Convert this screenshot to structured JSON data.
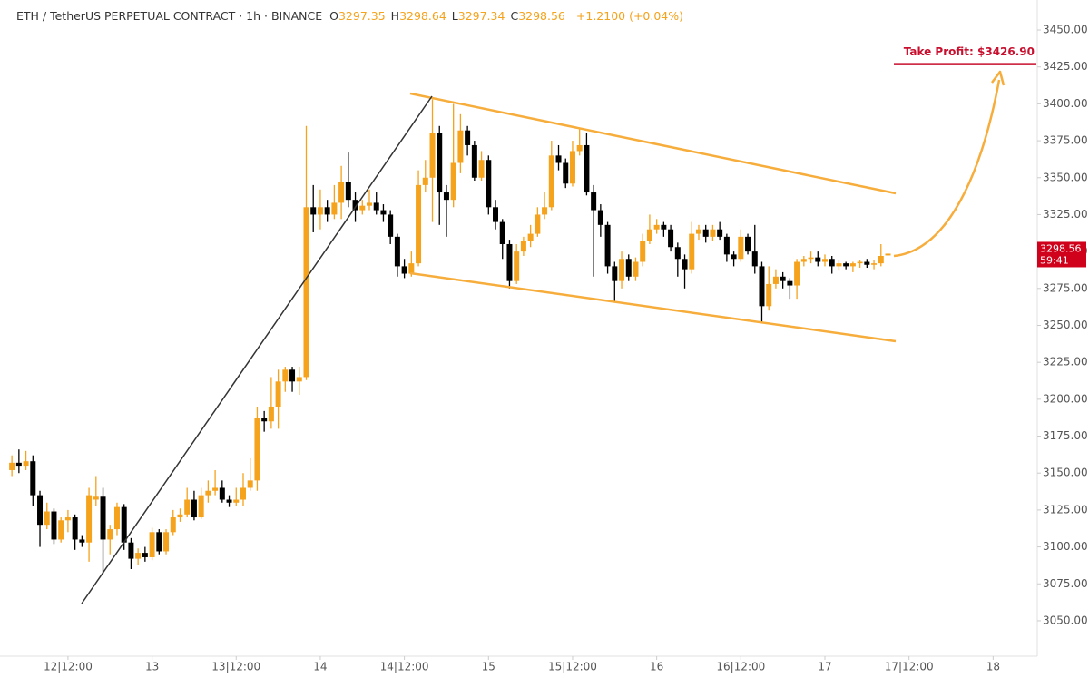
{
  "chart_data": {
    "type": "candlestick",
    "title": "ETH / TetherUS PERPETUAL CONTRACT · 1h · BINANCE",
    "ohlc_labels": [
      "O",
      "H",
      "L",
      "C"
    ],
    "change": "+1.2100 (+0.04%)",
    "countdown": "59:41",
    "take_profit": {
      "label": "Take Profit: $3426.90",
      "value": 3426.9
    },
    "up_color": "#f5a21c",
    "down_color": "#000000",
    "x": [
      4,
      5,
      6,
      7,
      8,
      9,
      10,
      11,
      12,
      13,
      14,
      15,
      16,
      17,
      18,
      19,
      20,
      21,
      22,
      23,
      24,
      25,
      26,
      27,
      28,
      29,
      30,
      31,
      32,
      33,
      34,
      35,
      36,
      37,
      38,
      39,
      40,
      41,
      42,
      43,
      44,
      45,
      46,
      47,
      48,
      49,
      50,
      51,
      52,
      53,
      54,
      55,
      56,
      57,
      58,
      59,
      60,
      61,
      62,
      63,
      64,
      65,
      66,
      67,
      68,
      69,
      70,
      71,
      72,
      73,
      74,
      75,
      76,
      77,
      78,
      79,
      80,
      81,
      82,
      83,
      84,
      85,
      86,
      87,
      88,
      89,
      90,
      91,
      92,
      93,
      94,
      95,
      96,
      97,
      98,
      99,
      100,
      101,
      102,
      103,
      104,
      105,
      106,
      107,
      108,
      109,
      110,
      111,
      112,
      113,
      114,
      115,
      116,
      117,
      118,
      119,
      120,
      121,
      122,
      123,
      124,
      125,
      126,
      127,
      128,
      129
    ],
    "open": [
      3152,
      3157,
      3155,
      3158,
      3135,
      3115,
      3124,
      3105,
      3118,
      3120,
      3105,
      3103,
      3132,
      3134,
      3105,
      3112,
      3127,
      3103,
      3092,
      3096,
      3093,
      3110,
      3097,
      3110,
      3120,
      3122,
      3132,
      3120,
      3135,
      3138,
      3140,
      3132,
      3130,
      3132,
      3140,
      3145,
      3187,
      3185,
      3195,
      3212,
      3220,
      3212,
      3215,
      3330,
      3325,
      3330,
      3325,
      3333,
      3347,
      3335,
      3328,
      3331,
      3333,
      3328,
      3325,
      3310,
      3290,
      3285,
      3292,
      3345,
      3350,
      3380,
      3340,
      3335,
      3360,
      3382,
      3372,
      3350,
      3362,
      3330,
      3320,
      3305,
      3280,
      3300,
      3307,
      3312,
      3325,
      3330,
      3365,
      3360,
      3346,
      3368,
      3372,
      3340,
      3328,
      3318,
      3290,
      3280,
      3295,
      3283,
      3293,
      3307,
      3315,
      3318,
      3315,
      3303,
      3295,
      3288,
      3312,
      3315,
      3310,
      3315,
      3310,
      3298,
      3295,
      3310,
      3300,
      3290,
      3263,
      3278,
      3283,
      3280,
      3277,
      3293,
      3295,
      3296,
      3293,
      3295,
      3290,
      3292,
      3290,
      3292,
      3293,
      3291,
      3292,
      3297.35
    ],
    "high": [
      3162,
      3166,
      3165,
      3162,
      3138,
      3130,
      3126,
      3120,
      3125,
      3122,
      3108,
      3140,
      3148,
      3140,
      3115,
      3130,
      3129,
      3106,
      3099,
      3100,
      3113,
      3112,
      3112,
      3125,
      3126,
      3140,
      3138,
      3140,
      3145,
      3152,
      3145,
      3135,
      3140,
      3150,
      3160,
      3195,
      3192,
      3215,
      3220,
      3222,
      3222,
      3222,
      3385,
      3345,
      3342,
      3335,
      3345,
      3358,
      3367,
      3340,
      3335,
      3342,
      3340,
      3332,
      3328,
      3312,
      3295,
      3300,
      3355,
      3362,
      3403,
      3385,
      3345,
      3400,
      3393,
      3385,
      3375,
      3368,
      3365,
      3335,
      3322,
      3308,
      3305,
      3310,
      3318,
      3330,
      3340,
      3375,
      3372,
      3363,
      3375,
      3383,
      3380,
      3345,
      3332,
      3320,
      3293,
      3300,
      3298,
      3296,
      3312,
      3325,
      3322,
      3320,
      3318,
      3306,
      3298,
      3320,
      3318,
      3318,
      3318,
      3320,
      3312,
      3300,
      3315,
      3312,
      3318,
      3293,
      3290,
      3288,
      3286,
      3282,
      3295,
      3297,
      3300,
      3300,
      3298,
      3297,
      3294,
      3293,
      3293,
      3294,
      3295,
      3294,
      3305,
      3298.64
    ],
    "low": [
      3148,
      3150,
      3152,
      3128,
      3100,
      3112,
      3102,
      3103,
      3110,
      3098,
      3100,
      3090,
      3128,
      3082,
      3095,
      3108,
      3098,
      3085,
      3088,
      3090,
      3091,
      3095,
      3095,
      3108,
      3117,
      3120,
      3118,
      3119,
      3130,
      3135,
      3130,
      3127,
      3128,
      3128,
      3138,
      3138,
      3178,
      3180,
      3180,
      3205,
      3205,
      3203,
      3213,
      3313,
      3315,
      3320,
      3322,
      3322,
      3330,
      3320,
      3325,
      3328,
      3325,
      3320,
      3305,
      3283,
      3282,
      3283,
      3290,
      3340,
      3320,
      3318,
      3310,
      3330,
      3353,
      3365,
      3348,
      3348,
      3325,
      3315,
      3295,
      3275,
      3278,
      3297,
      3303,
      3310,
      3322,
      3328,
      3355,
      3343,
      3344,
      3365,
      3338,
      3283,
      3310,
      3285,
      3266,
      3275,
      3280,
      3280,
      3290,
      3305,
      3312,
      3310,
      3300,
      3283,
      3275,
      3285,
      3308,
      3306,
      3307,
      3308,
      3293,
      3290,
      3293,
      3298,
      3285,
      3252,
      3260,
      3275,
      3275,
      3268,
      3268,
      3290,
      3292,
      3290,
      3290,
      3285,
      3287,
      3288,
      3286,
      3289,
      3289,
      3288,
      3290,
      3297.34
    ],
    "close": [
      3157,
      3155,
      3158,
      3135,
      3115,
      3124,
      3105,
      3118,
      3120,
      3105,
      3103,
      3135,
      3134,
      3105,
      3112,
      3127,
      3103,
      3092,
      3096,
      3093,
      3110,
      3097,
      3110,
      3120,
      3122,
      3132,
      3120,
      3135,
      3138,
      3140,
      3132,
      3130,
      3132,
      3140,
      3145,
      3187,
      3185,
      3195,
      3212,
      3220,
      3212,
      3215,
      3330,
      3325,
      3330,
      3325,
      3333,
      3347,
      3335,
      3328,
      3331,
      3333,
      3328,
      3325,
      3310,
      3290,
      3285,
      3292,
      3345,
      3350,
      3380,
      3340,
      3335,
      3360,
      3382,
      3372,
      3350,
      3362,
      3330,
      3320,
      3305,
      3280,
      3300,
      3307,
      3312,
      3325,
      3330,
      3365,
      3360,
      3346,
      3368,
      3372,
      3340,
      3328,
      3318,
      3290,
      3280,
      3295,
      3283,
      3293,
      3307,
      3315,
      3318,
      3315,
      3303,
      3295,
      3288,
      3312,
      3315,
      3310,
      3315,
      3310,
      3298,
      3295,
      3310,
      3300,
      3290,
      3263,
      3278,
      3283,
      3280,
      3277,
      3293,
      3295,
      3296,
      3293,
      3295,
      3290,
      3292,
      3290,
      3292,
      3293,
      3291,
      3292,
      3297,
      3298.56
    ],
    "xlim": [
      2.3,
      150.3
    ],
    "xticks": [
      {
        "value": 12,
        "label": "12|12:00"
      },
      {
        "value": 24,
        "label": "13"
      },
      {
        "value": 36,
        "label": "13|12:00"
      },
      {
        "value": 48,
        "label": "14"
      },
      {
        "value": 60,
        "label": "14|12:00"
      },
      {
        "value": 72,
        "label": "15"
      },
      {
        "value": 84,
        "label": "15|12:00"
      },
      {
        "value": 96,
        "label": "16"
      },
      {
        "value": 108,
        "label": "16|12:00"
      },
      {
        "value": 120,
        "label": "17"
      },
      {
        "value": 132,
        "label": "17|12:00"
      },
      {
        "value": 144,
        "label": "18"
      }
    ],
    "ylim": [
      3026,
      3470.3
    ],
    "yticks": [
      {
        "value": 3050,
        "label": "3050.00"
      },
      {
        "value": 3075,
        "label": "3075.00"
      },
      {
        "value": 3100,
        "label": "3100.00"
      },
      {
        "value": 3125,
        "label": "3125.00"
      },
      {
        "value": 3150,
        "label": "3150.00"
      },
      {
        "value": 3175,
        "label": "3175.00"
      },
      {
        "value": 3200,
        "label": "3200.00"
      },
      {
        "value": 3225,
        "label": "3225.00"
      },
      {
        "value": 3250,
        "label": "3250.00"
      },
      {
        "value": 3275,
        "label": "3275.00"
      },
      {
        "value": 3300,
        "label": "3300.00"
      },
      {
        "value": 3325,
        "label": "3325.00"
      },
      {
        "value": 3350,
        "label": "3350.00"
      },
      {
        "value": 3375,
        "label": "3375.00"
      },
      {
        "value": 3400,
        "label": "3400.00"
      },
      {
        "value": 3425,
        "label": "3425.00"
      },
      {
        "value": 3450,
        "label": "3450.00"
      }
    ]
  }
}
